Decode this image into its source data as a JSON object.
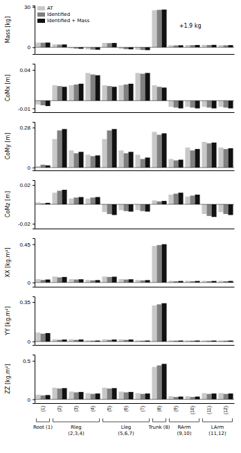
{
  "chart_data": [
    {
      "type": "bar",
      "ylabel": "Mass [kg]",
      "ylim": [
        -5,
        31
      ],
      "yticks": [
        0,
        30
      ],
      "annotation": "+1.9 kg",
      "legend": "upper left",
      "tick_labels": "y",
      "categories": [
        "(1)",
        "(2)",
        "(3)",
        "(4)",
        "(5)",
        "(6)",
        "(7)",
        "(8)",
        "(9)",
        "(10)",
        "(11)",
        "(12)"
      ],
      "series": [
        {
          "name": "AT",
          "color": "#c8c8c8",
          "values": [
            3.5,
            2.2,
            -0.8,
            -1.5,
            3.3,
            -1.2,
            -1.8,
            27.5,
            1.5,
            1.7,
            1.8,
            1.6
          ]
        },
        {
          "name": "Identified",
          "color": "#808080",
          "values": [
            3.4,
            2.0,
            -1.0,
            -1.7,
            3.1,
            -1.4,
            -2.0,
            27.8,
            1.4,
            1.6,
            1.7,
            1.5
          ]
        },
        {
          "name": "Identified + Mass",
          "color": "#111111",
          "values": [
            3.5,
            2.1,
            -1.1,
            -1.8,
            3.2,
            -1.5,
            -2.1,
            28.0,
            1.5,
            1.7,
            1.8,
            1.6
          ]
        }
      ]
    },
    {
      "type": "bar",
      "ylabel": "CoMx [m]",
      "ylim": [
        -0.015,
        0.048
      ],
      "yticks": [
        -0.01,
        0.04
      ],
      "tick_labels": "y",
      "categories": [
        "(1)",
        "(2)",
        "(3)",
        "(4)",
        "(5)",
        "(6)",
        "(7)",
        "(8)",
        "(9)",
        "(10)",
        "(11)",
        "(12)"
      ],
      "series": [
        {
          "name": "AT",
          "color": "#c8c8c8",
          "values": [
            -0.005,
            0.02,
            0.02,
            0.036,
            0.02,
            0.02,
            0.036,
            0.02,
            -0.008,
            -0.008,
            -0.008,
            -0.008
          ]
        },
        {
          "name": "Identified",
          "color": "#808080",
          "values": [
            -0.006,
            0.019,
            0.021,
            0.034,
            0.019,
            0.021,
            0.035,
            0.018,
            -0.009,
            -0.009,
            -0.009,
            -0.009
          ]
        },
        {
          "name": "Identified + Mass",
          "color": "#111111",
          "values": [
            -0.007,
            0.018,
            0.022,
            0.033,
            0.018,
            0.022,
            0.036,
            0.017,
            -0.01,
            -0.01,
            -0.01,
            -0.01
          ]
        }
      ]
    },
    {
      "type": "bar",
      "ylabel": "CoMy [m]",
      "ylim": [
        -0.02,
        0.32
      ],
      "yticks": [
        0,
        0.28
      ],
      "tick_labels": "y",
      "categories": [
        "(1)",
        "(2)",
        "(3)",
        "(4)",
        "(5)",
        "(6)",
        "(7)",
        "(8)",
        "(9)",
        "(10)",
        "(11)",
        "(12)"
      ],
      "series": [
        {
          "name": "AT",
          "color": "#c8c8c8",
          "values": [
            0.01,
            0.2,
            0.12,
            0.09,
            0.2,
            0.12,
            0.09,
            0.25,
            0.06,
            0.14,
            0.18,
            0.14
          ]
        },
        {
          "name": "Identified",
          "color": "#808080",
          "values": [
            0.02,
            0.26,
            0.1,
            0.08,
            0.26,
            0.1,
            0.06,
            0.23,
            0.05,
            0.12,
            0.17,
            0.13
          ]
        },
        {
          "name": "Identified + Mass",
          "color": "#111111",
          "values": [
            0.015,
            0.27,
            0.11,
            0.085,
            0.27,
            0.11,
            0.07,
            0.24,
            0.055,
            0.13,
            0.175,
            0.135
          ]
        }
      ]
    },
    {
      "type": "bar",
      "ylabel": "CoMz [m]",
      "ylim": [
        -0.025,
        0.025
      ],
      "yticks": [
        -0.02,
        0.02
      ],
      "tick_labels": "y",
      "categories": [
        "(1)",
        "(2)",
        "(3)",
        "(4)",
        "(5)",
        "(6)",
        "(7)",
        "(8)",
        "(9)",
        "(10)",
        "(11)",
        "(12)"
      ],
      "series": [
        {
          "name": "AT",
          "color": "#c8c8c8",
          "values": [
            0.002,
            0.012,
            0.006,
            0.006,
            -0.008,
            -0.006,
            -0.006,
            0.004,
            0.01,
            0.008,
            -0.01,
            -0.008
          ]
        },
        {
          "name": "Identified",
          "color": "#808080",
          "values": [
            0.001,
            0.014,
            0.007,
            0.007,
            -0.01,
            -0.007,
            -0.007,
            0.003,
            0.011,
            0.009,
            -0.012,
            -0.01
          ]
        },
        {
          "name": "Identified + Mass",
          "color": "#111111",
          "values": [
            0.0015,
            0.015,
            0.0075,
            0.0075,
            -0.011,
            -0.0075,
            -0.0075,
            0.0035,
            0.012,
            0.01,
            -0.013,
            -0.011
          ]
        }
      ]
    },
    {
      "type": "bar",
      "ylabel": "XX [kg.m²]",
      "ylim": [
        -0.05,
        0.52
      ],
      "yticks": [
        0,
        0.45
      ],
      "tick_labels": "y",
      "categories": [
        "(1)",
        "(2)",
        "(3)",
        "(4)",
        "(5)",
        "(6)",
        "(7)",
        "(8)",
        "(9)",
        "(10)",
        "(11)",
        "(12)"
      ],
      "series": [
        {
          "name": "AT",
          "color": "#c8c8c8",
          "values": [
            0.04,
            0.07,
            0.04,
            0.03,
            0.07,
            0.04,
            0.03,
            0.43,
            0.02,
            0.02,
            0.02,
            0.02
          ]
        },
        {
          "name": "Identified",
          "color": "#808080",
          "values": [
            0.03,
            0.06,
            0.035,
            0.025,
            0.065,
            0.035,
            0.025,
            0.44,
            0.015,
            0.015,
            0.015,
            0.015
          ]
        },
        {
          "name": "Identified + Mass",
          "color": "#111111",
          "values": [
            0.035,
            0.065,
            0.038,
            0.028,
            0.068,
            0.038,
            0.028,
            0.45,
            0.018,
            0.018,
            0.018,
            0.018
          ]
        }
      ]
    },
    {
      "type": "bar",
      "ylabel": "YY [kg.m²]",
      "ylim": [
        -0.03,
        0.4
      ],
      "yticks": [
        0,
        0.35
      ],
      "tick_labels": "y",
      "categories": [
        "(1)",
        "(2)",
        "(3)",
        "(4)",
        "(5)",
        "(6)",
        "(7)",
        "(8)",
        "(9)",
        "(10)",
        "(11)",
        "(12)"
      ],
      "series": [
        {
          "name": "AT",
          "color": "#c8c8c8",
          "values": [
            0.08,
            0.02,
            0.02,
            0.01,
            0.02,
            0.02,
            0.01,
            0.32,
            0.01,
            0.01,
            0.01,
            0.01
          ]
        },
        {
          "name": "Identified",
          "color": "#808080",
          "values": [
            0.07,
            0.015,
            0.015,
            0.008,
            0.015,
            0.015,
            0.008,
            0.33,
            0.008,
            0.008,
            0.008,
            0.008
          ]
        },
        {
          "name": "Identified + Mass",
          "color": "#111111",
          "values": [
            0.075,
            0.018,
            0.018,
            0.009,
            0.018,
            0.018,
            0.009,
            0.34,
            0.009,
            0.009,
            0.009,
            0.009
          ]
        }
      ]
    },
    {
      "type": "bar",
      "ylabel": "ZZ [kg.m²]",
      "ylim": [
        -0.05,
        0.58
      ],
      "yticks": [
        0,
        0.5
      ],
      "categories": [
        "(1)",
        "(2)",
        "(3)",
        "(4)",
        "(5)",
        "(6)",
        "(7)",
        "(8)",
        "(9)",
        "(10)",
        "(11)",
        "(12)"
      ],
      "series": [
        {
          "name": "AT",
          "color": "#c8c8c8",
          "values": [
            0.06,
            0.15,
            0.1,
            0.08,
            0.15,
            0.1,
            0.08,
            0.42,
            0.04,
            0.04,
            0.08,
            0.08
          ]
        },
        {
          "name": "Identified",
          "color": "#808080",
          "values": [
            0.05,
            0.14,
            0.09,
            0.07,
            0.14,
            0.09,
            0.07,
            0.44,
            0.03,
            0.03,
            0.07,
            0.07
          ]
        },
        {
          "name": "Identified + Mass",
          "color": "#111111",
          "values": [
            0.055,
            0.145,
            0.095,
            0.075,
            0.145,
            0.095,
            0.075,
            0.46,
            0.035,
            0.035,
            0.075,
            0.075
          ]
        }
      ],
      "groups": [
        {
          "label": "Root (1)",
          "categories": [
            "(1)"
          ]
        },
        {
          "label": "Rleg\n(2,3,4)",
          "categories": [
            "(2)",
            "(3)",
            "(4)"
          ]
        },
        {
          "label": "Lleg\n(5,6,7)",
          "categories": [
            "(5)",
            "(6)",
            "(7)"
          ]
        },
        {
          "label": "Trunk (8)",
          "categories": [
            "(8)"
          ]
        },
        {
          "label": "RArm\n(9,10)",
          "categories": [
            "(9)",
            "(10)"
          ]
        },
        {
          "label": "LArm\n(11,12)",
          "categories": [
            "(11)",
            "(12)"
          ]
        }
      ]
    }
  ]
}
